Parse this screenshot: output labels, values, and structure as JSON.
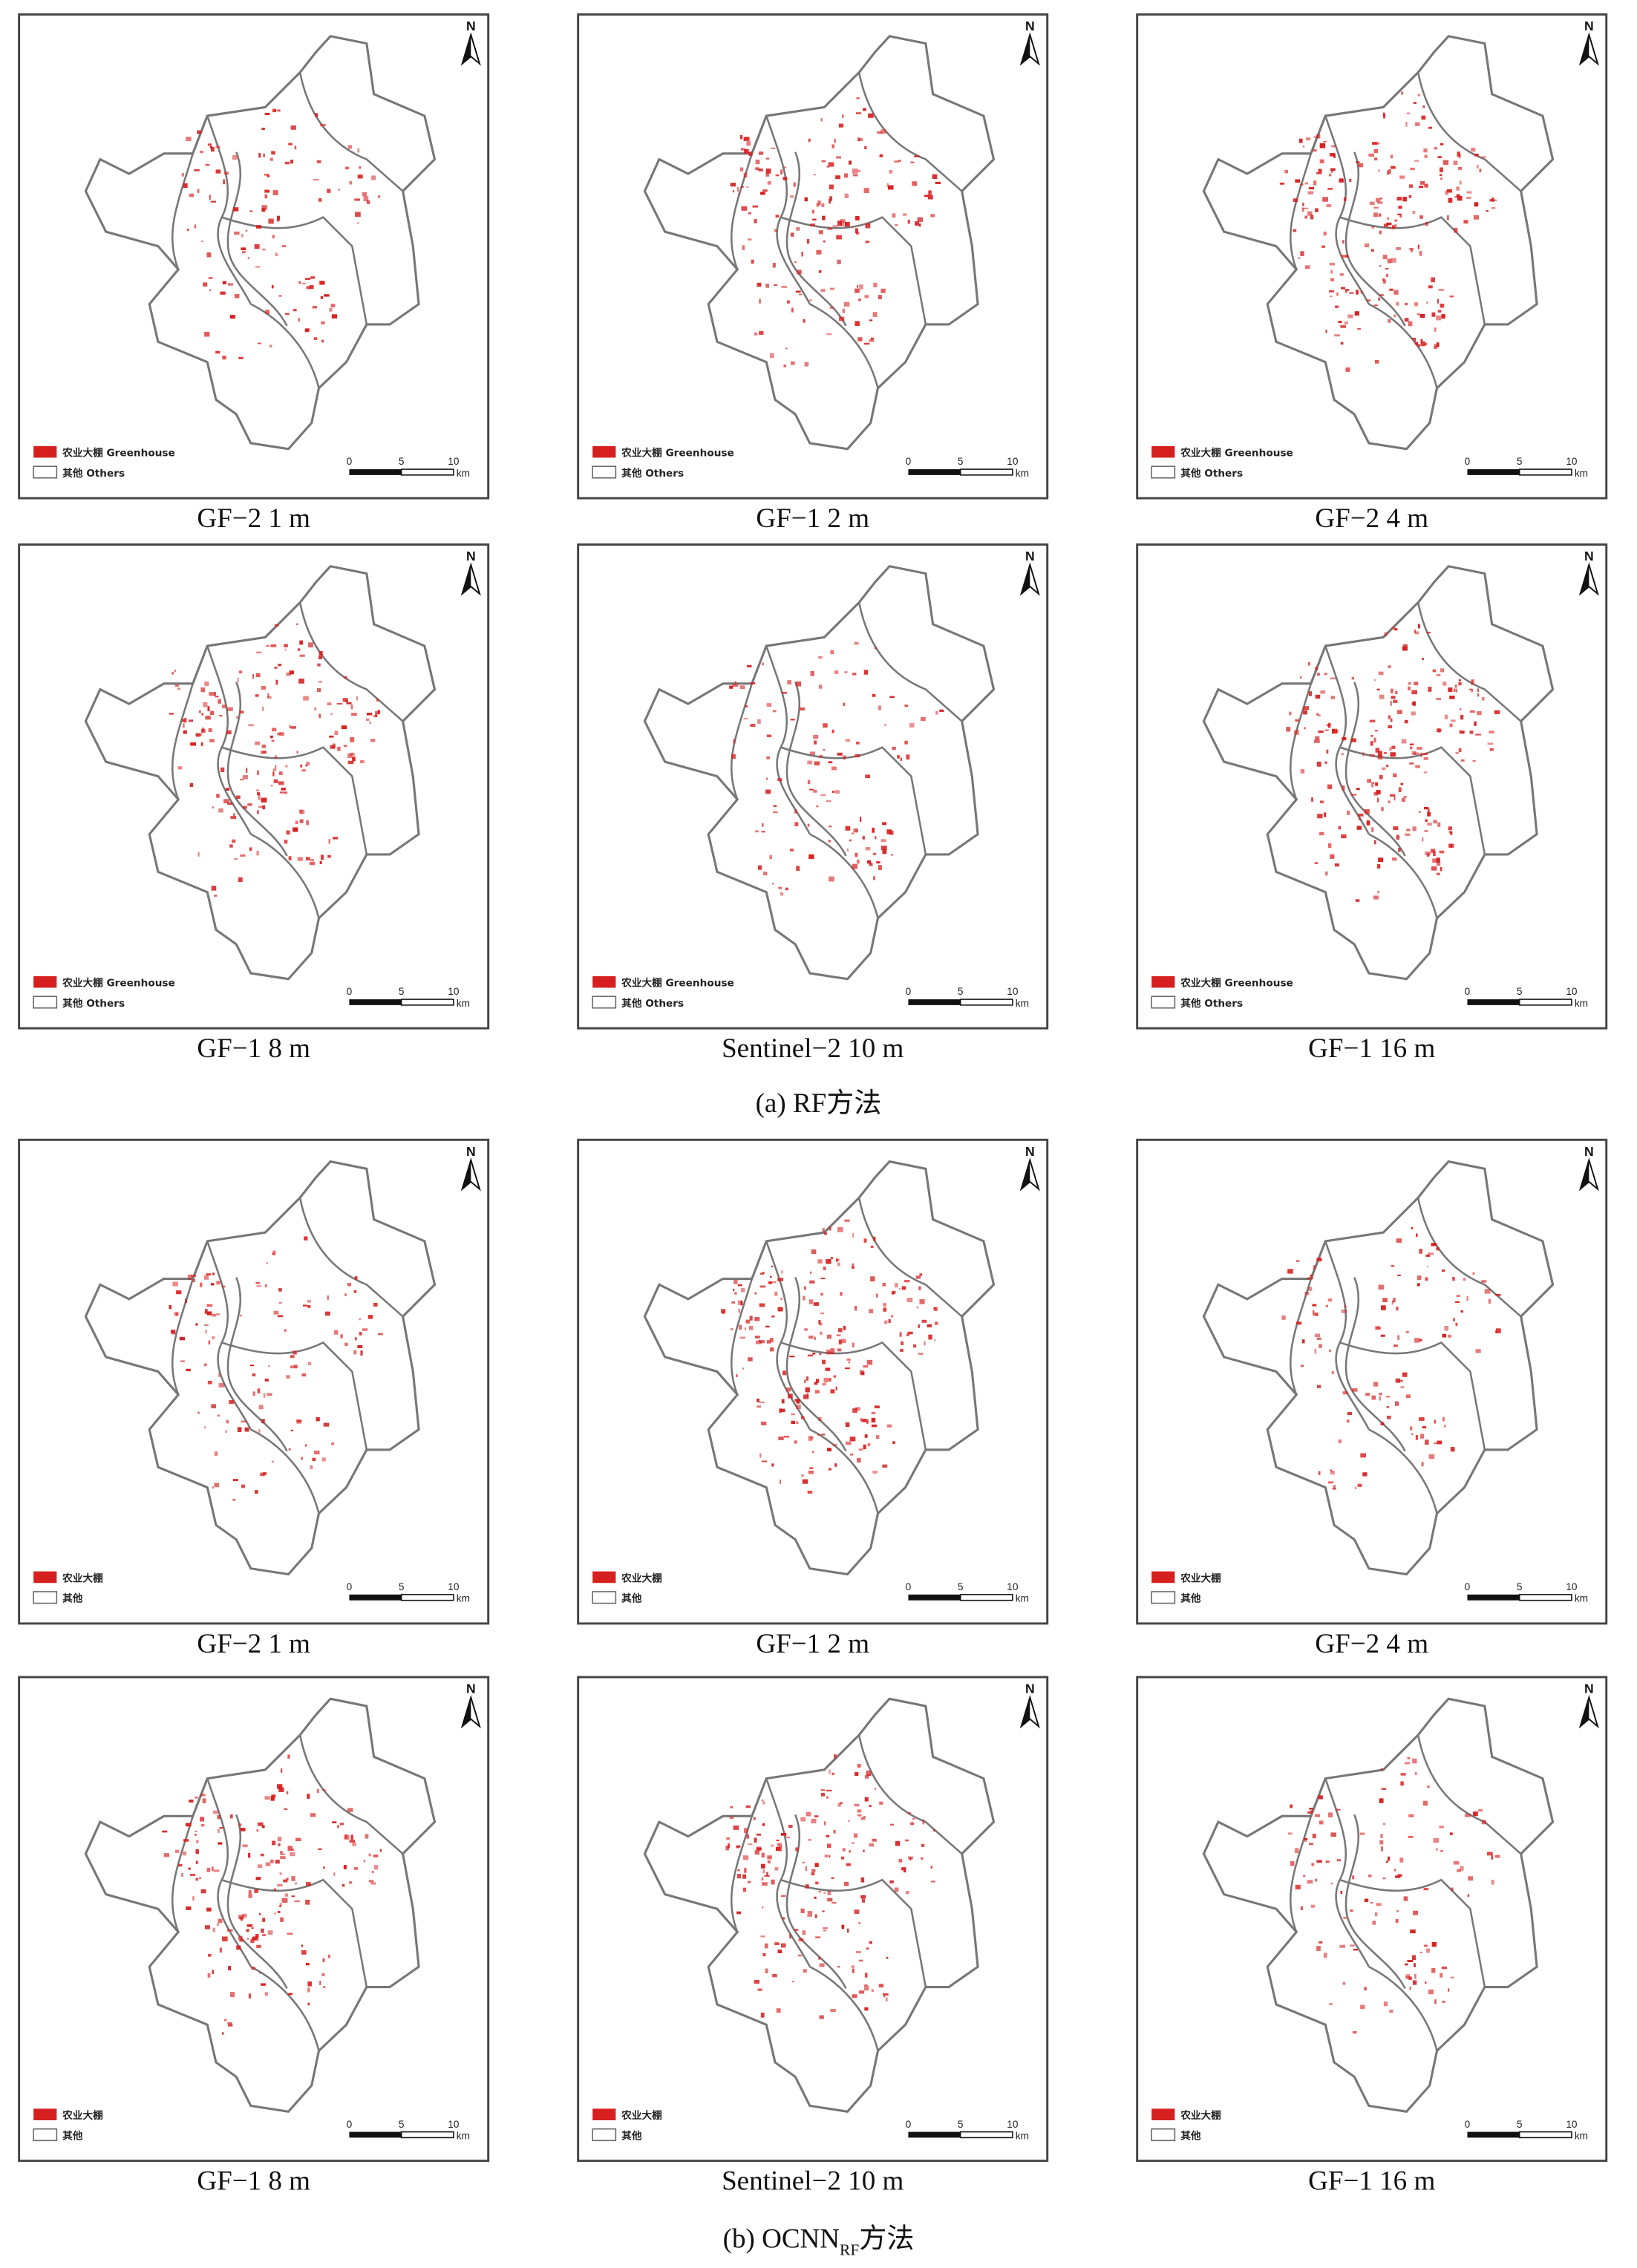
{
  "north": "N",
  "scale_bar": {
    "ticks": [
      "0",
      "5",
      "10"
    ],
    "unit": "km"
  },
  "sections": [
    {
      "label": {
        "text": "(a) RF方法"
      },
      "legend": [
        "农业大棚 Greenhouse",
        "其他 Others"
      ],
      "panels": [
        {
          "caption": "GF−2 1 m"
        },
        {
          "caption": "GF−1 2 m"
        },
        {
          "caption": "GF−2 4 m"
        },
        {
          "caption": "GF−1 8 m"
        },
        {
          "caption": "Sentinel−2 10 m"
        },
        {
          "caption": "GF−1 16 m"
        }
      ]
    },
    {
      "label": {
        "text": "(b) OCNN",
        "sub": "RF",
        "tail": "方法"
      },
      "legend": [
        "农业大棚",
        "其他"
      ],
      "panels": [
        {
          "caption": "GF−2 1 m"
        },
        {
          "caption": "GF−1 2 m"
        },
        {
          "caption": "GF−2 4 m"
        },
        {
          "caption": "GF−1 8 m"
        },
        {
          "caption": "Sentinel−2 10 m"
        },
        {
          "caption": "GF−1 16 m"
        }
      ]
    }
  ]
}
